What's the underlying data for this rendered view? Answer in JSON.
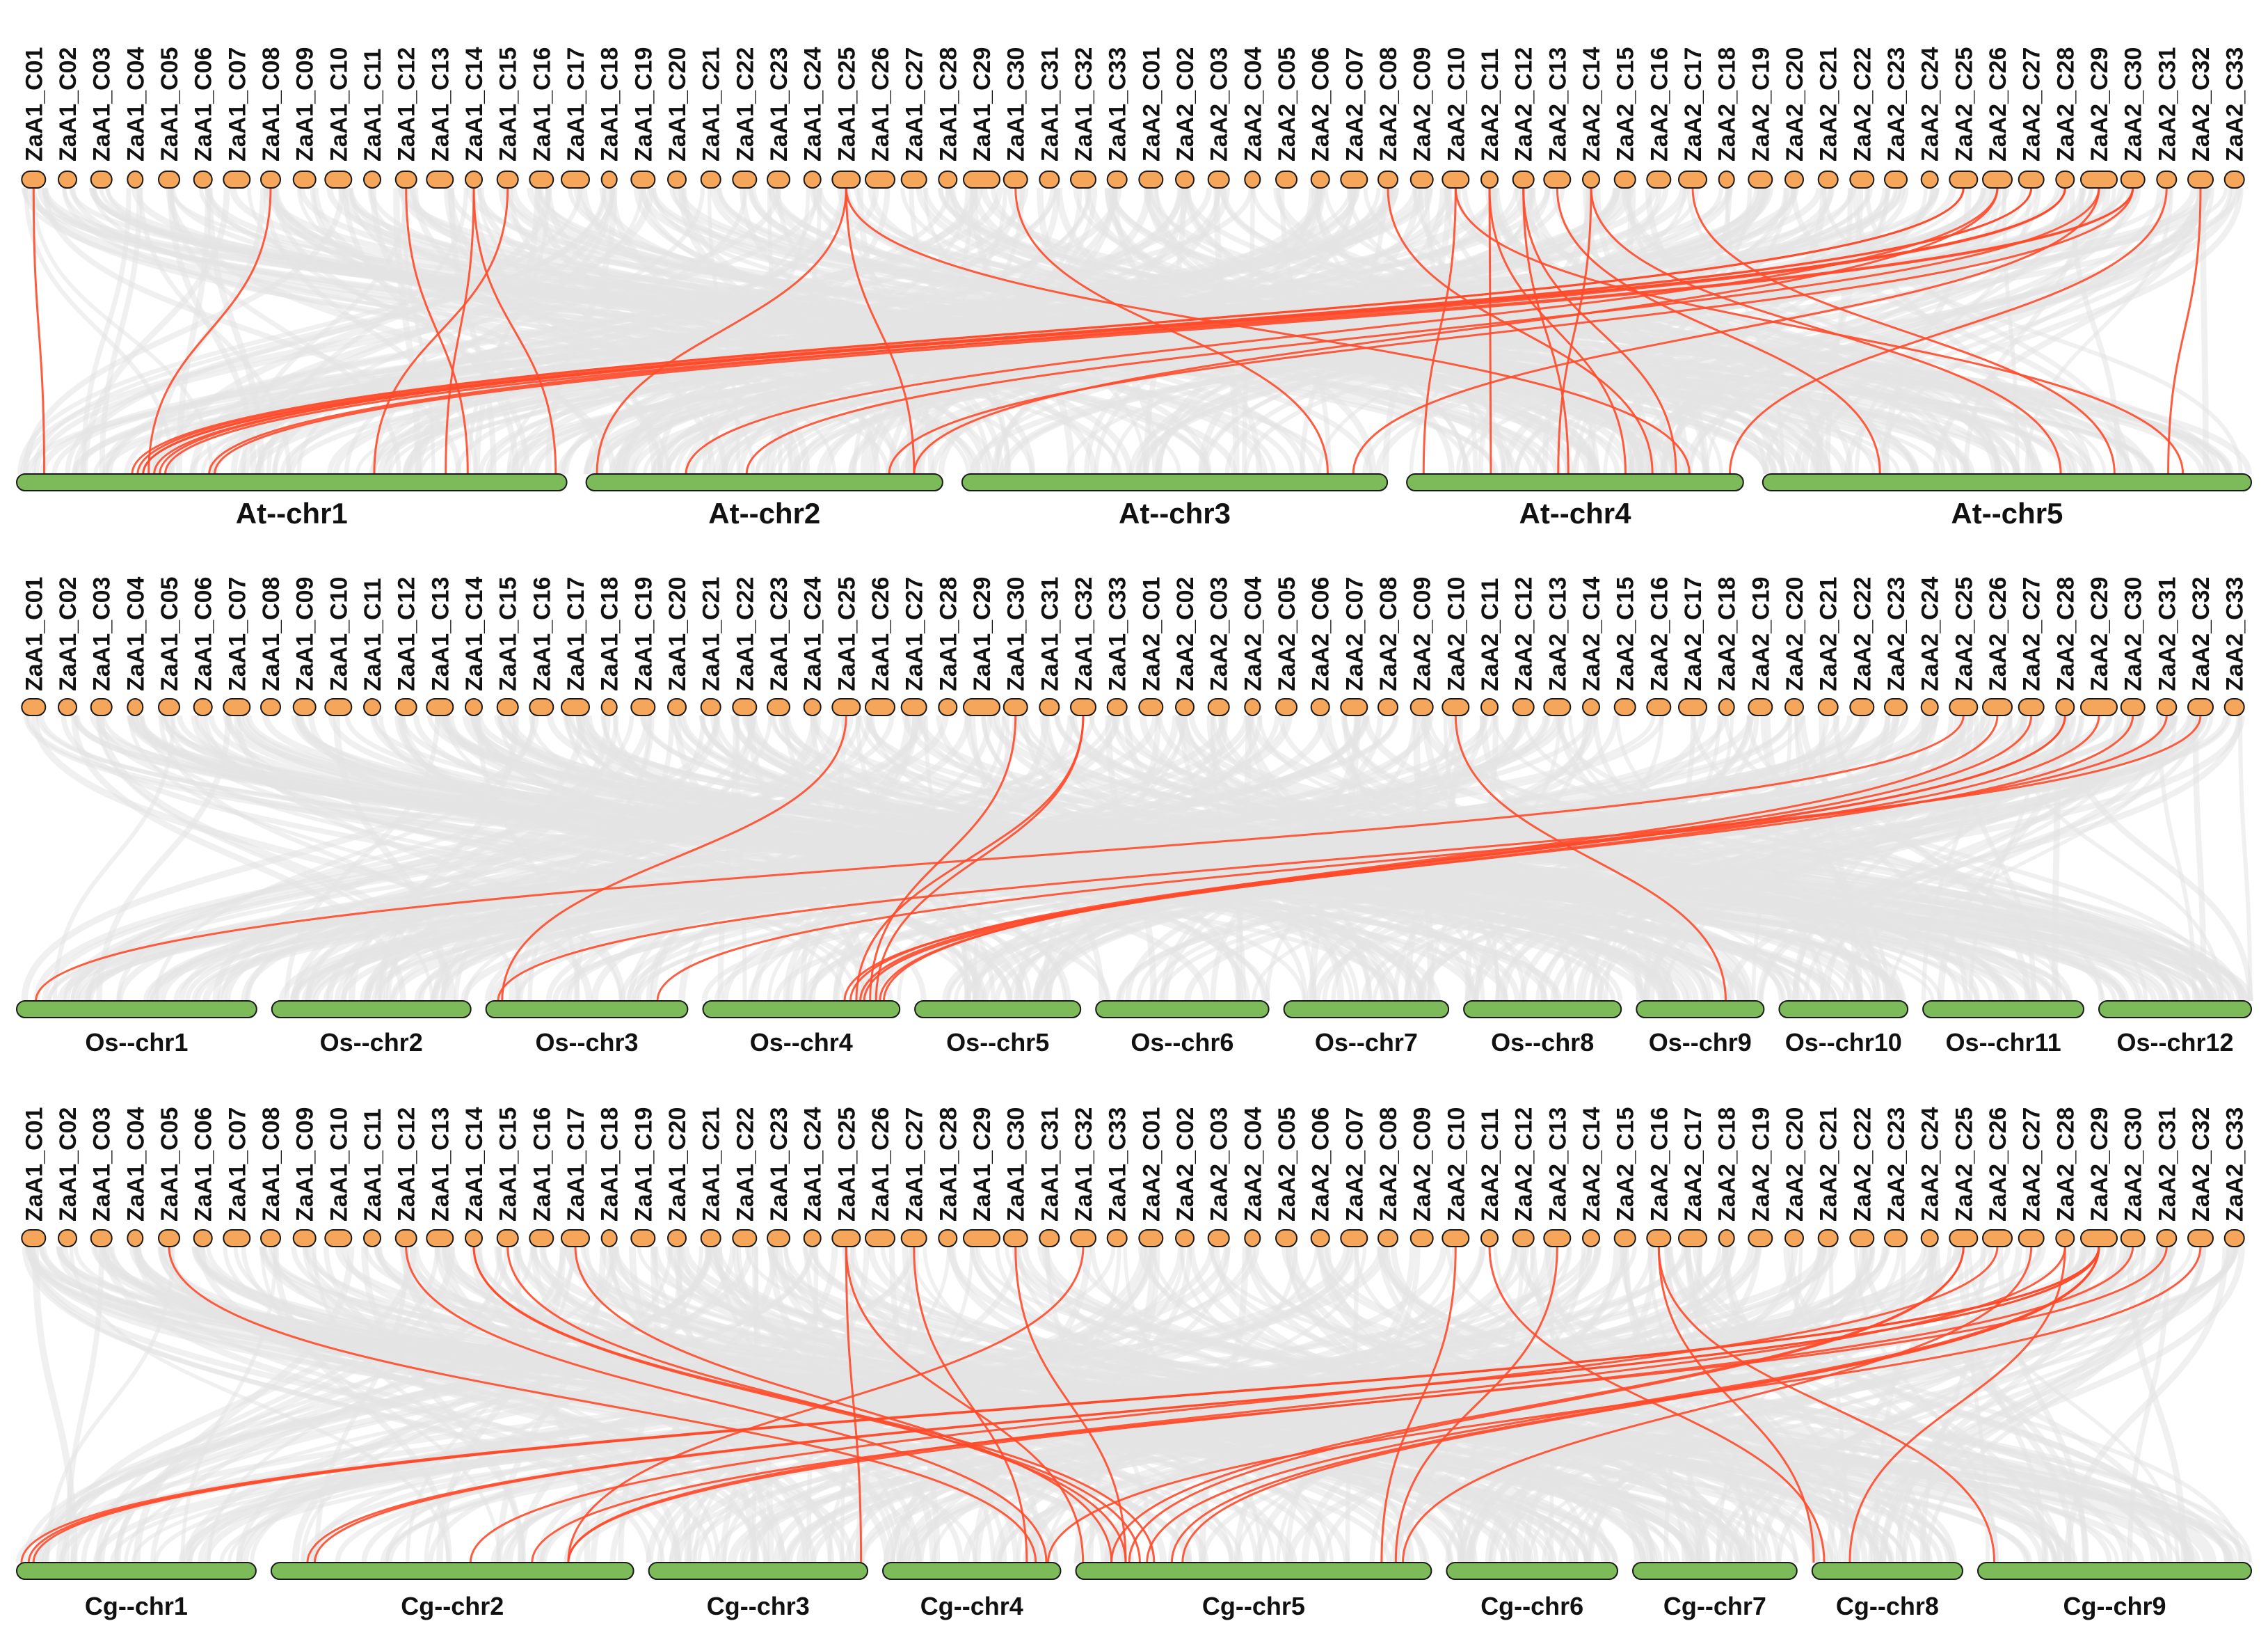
{
  "colors": {
    "background": "#ffffff",
    "top_node_fill": "#f5a65b",
    "node_stroke": "#1a1a1a",
    "bottom_bar_fill": "#7dba5a",
    "background_links": "#e3e3e3",
    "highlight_links": "#ff4a2a"
  },
  "top_chromosomes": [
    "ZaA1_C01",
    "ZaA1_C02",
    "ZaA1_C03",
    "ZaA1_C04",
    "ZaA1_C05",
    "ZaA1_C06",
    "ZaA1_C07",
    "ZaA1_C08",
    "ZaA1_C09",
    "ZaA1_C10",
    "ZaA1_C11",
    "ZaA1_C12",
    "ZaA1_C13",
    "ZaA1_C14",
    "ZaA1_C15",
    "ZaA1_C16",
    "ZaA1_C17",
    "ZaA1_C18",
    "ZaA1_C19",
    "ZaA1_C20",
    "ZaA1_C21",
    "ZaA1_C22",
    "ZaA1_C23",
    "ZaA1_C24",
    "ZaA1_C25",
    "ZaA1_C26",
    "ZaA1_C27",
    "ZaA1_C28",
    "ZaA1_C29",
    "ZaA1_C30",
    "ZaA1_C31",
    "ZaA1_C32",
    "ZaA1_C33",
    "ZaA2_C01",
    "ZaA2_C02",
    "ZaA2_C03",
    "ZaA2_C04",
    "ZaA2_C05",
    "ZaA2_C06",
    "ZaA2_C07",
    "ZaA2_C08",
    "ZaA2_C09",
    "ZaA2_C10",
    "ZaA2_C11",
    "ZaA2_C12",
    "ZaA2_C13",
    "ZaA2_C14",
    "ZaA2_C15",
    "ZaA2_C16",
    "ZaA2_C17",
    "ZaA2_C18",
    "ZaA2_C19",
    "ZaA2_C20",
    "ZaA2_C21",
    "ZaA2_C22",
    "ZaA2_C23",
    "ZaA2_C24",
    "ZaA2_C25",
    "ZaA2_C26",
    "ZaA2_C27",
    "ZaA2_C28",
    "ZaA2_C29",
    "ZaA2_C30",
    "ZaA2_C31",
    "ZaA2_C32",
    "ZaA2_C33"
  ],
  "panels": [
    {
      "id": "at",
      "bottom_chromosomes": [
        {
          "label": "At--chr1",
          "size": 30.4
        },
        {
          "label": "At--chr2",
          "size": 19.7
        },
        {
          "label": "At--chr3",
          "size": 23.5
        },
        {
          "label": "At--chr4",
          "size": 18.6
        },
        {
          "label": "At--chr5",
          "size": 27.0
        }
      ],
      "highlight_links": [
        [
          0,
          0.05
        ],
        [
          7,
          0.24
        ],
        [
          11,
          0.82
        ],
        [
          13,
          0.98
        ],
        [
          14,
          0.65
        ],
        [
          13,
          0.78
        ],
        [
          24,
          0.03
        ],
        [
          24,
          0.92
        ],
        [
          29,
          0.86
        ],
        [
          24,
          0.84
        ],
        [
          40,
          0.73
        ],
        [
          42,
          0.05
        ],
        [
          43,
          0.65
        ],
        [
          44,
          0.8
        ],
        [
          42,
          0.86
        ],
        [
          46,
          0.45
        ],
        [
          49,
          0.72
        ],
        [
          57,
          0.22
        ],
        [
          57,
          0.21
        ],
        [
          58,
          0.92
        ],
        [
          59,
          0.23
        ],
        [
          60,
          0.23
        ],
        [
          60,
          0.25
        ],
        [
          59,
          0.26
        ],
        [
          60,
          0.35
        ],
        [
          62,
          0.27
        ],
        [
          62,
          0.36
        ],
        [
          62,
          0.85
        ],
        [
          61,
          0.92
        ],
        [
          63,
          0.96
        ],
        [
          64,
          0.83
        ],
        [
          61,
          0.45
        ],
        [
          58,
          0.28
        ],
        [
          43,
          0.25
        ],
        [
          44,
          0.48
        ],
        [
          45,
          0.24
        ],
        [
          46,
          0.61
        ]
      ],
      "highlight_targets": [
        0,
        0,
        0,
        0,
        0,
        0,
        1,
        1,
        2,
        3,
        3,
        3,
        3,
        3,
        4,
        3,
        4,
        0,
        0,
        1,
        0,
        0,
        0,
        0,
        0,
        0,
        0,
        1,
        2,
        3,
        4,
        1,
        1,
        3,
        3,
        4,
        4
      ]
    },
    {
      "id": "os",
      "bottom_chromosomes": [
        {
          "label": "Os--chr1",
          "size": 43.3
        },
        {
          "label": "Os--chr2",
          "size": 35.9
        },
        {
          "label": "Os--chr3",
          "size": 36.4
        },
        {
          "label": "Os--chr4",
          "size": 35.5
        },
        {
          "label": "Os--chr5",
          "size": 29.9
        },
        {
          "label": "Os--chr6",
          "size": 31.2
        },
        {
          "label": "Os--chr7",
          "size": 29.7
        },
        {
          "label": "Os--chr8",
          "size": 28.4
        },
        {
          "label": "Os--chr9",
          "size": 23.0
        },
        {
          "label": "Os--chr10",
          "size": 23.2
        },
        {
          "label": "Os--chr11",
          "size": 29.0
        },
        {
          "label": "Os--chr12",
          "size": 27.5
        }
      ],
      "highlight_links": [
        [
          24,
          0.08
        ],
        [
          29,
          0.85
        ],
        [
          31,
          0.88
        ],
        [
          31,
          0.78
        ],
        [
          42,
          0.7
        ],
        [
          57,
          0.08
        ],
        [
          58,
          0.92
        ],
        [
          59,
          0.9
        ],
        [
          60,
          0.8
        ],
        [
          60,
          0.75
        ],
        [
          61,
          0.82
        ],
        [
          62,
          0.72
        ],
        [
          63,
          0.85
        ],
        [
          64,
          0.06
        ]
      ],
      "highlight_targets": [
        2,
        3,
        3,
        3,
        8,
        0,
        3,
        3,
        3,
        3,
        3,
        3,
        2,
        2
      ]
    },
    {
      "id": "cg",
      "bottom_chromosomes": [
        {
          "label": "Cg--chr1",
          "size": 35.0
        },
        {
          "label": "Cg--chr2",
          "size": 53.0
        },
        {
          "label": "Cg--chr3",
          "size": 32.0
        },
        {
          "label": "Cg--chr4",
          "size": 26.0
        },
        {
          "label": "Cg--chr5",
          "size": 52.0
        },
        {
          "label": "Cg--chr6",
          "size": 25.0
        },
        {
          "label": "Cg--chr7",
          "size": 24.0
        },
        {
          "label": "Cg--chr8",
          "size": 22.0
        },
        {
          "label": "Cg--chr9",
          "size": 40.0
        }
      ],
      "highlight_links": [
        [
          4,
          0.86
        ],
        [
          11,
          0.92
        ],
        [
          13,
          0.18
        ],
        [
          13,
          0.22
        ],
        [
          14,
          0.14
        ],
        [
          16,
          0.1
        ],
        [
          24,
          0.97
        ],
        [
          24,
          0.02
        ],
        [
          26,
          0.81
        ],
        [
          29,
          0.14
        ],
        [
          31,
          0.82
        ],
        [
          42,
          0.86
        ],
        [
          43,
          0.08
        ],
        [
          45,
          0.9
        ],
        [
          48,
          0.01
        ],
        [
          48,
          0.06
        ],
        [
          57,
          0.1
        ],
        [
          57,
          0.15
        ],
        [
          58,
          0.55
        ],
        [
          59,
          0.92
        ],
        [
          61,
          0.02
        ],
        [
          61,
          0.05
        ],
        [
          61,
          0.07
        ],
        [
          61,
          0.1
        ],
        [
          61,
          0.12
        ],
        [
          61,
          0.2
        ],
        [
          61,
          0.27
        ],
        [
          61,
          0.3
        ],
        [
          62,
          0.82
        ],
        [
          63,
          0.72
        ],
        [
          64,
          0.93
        ],
        [
          60,
          0.82
        ],
        [
          60,
          0.25
        ]
      ],
      "highlight_targets": [
        3,
        3,
        4,
        4,
        4,
        4,
        2,
        4,
        3,
        4,
        1,
        4,
        7,
        4,
        7,
        8,
        4,
        4,
        1,
        4,
        0,
        0,
        0,
        1,
        1,
        4,
        4,
        4,
        1,
        1,
        3,
        1,
        7
      ]
    }
  ]
}
